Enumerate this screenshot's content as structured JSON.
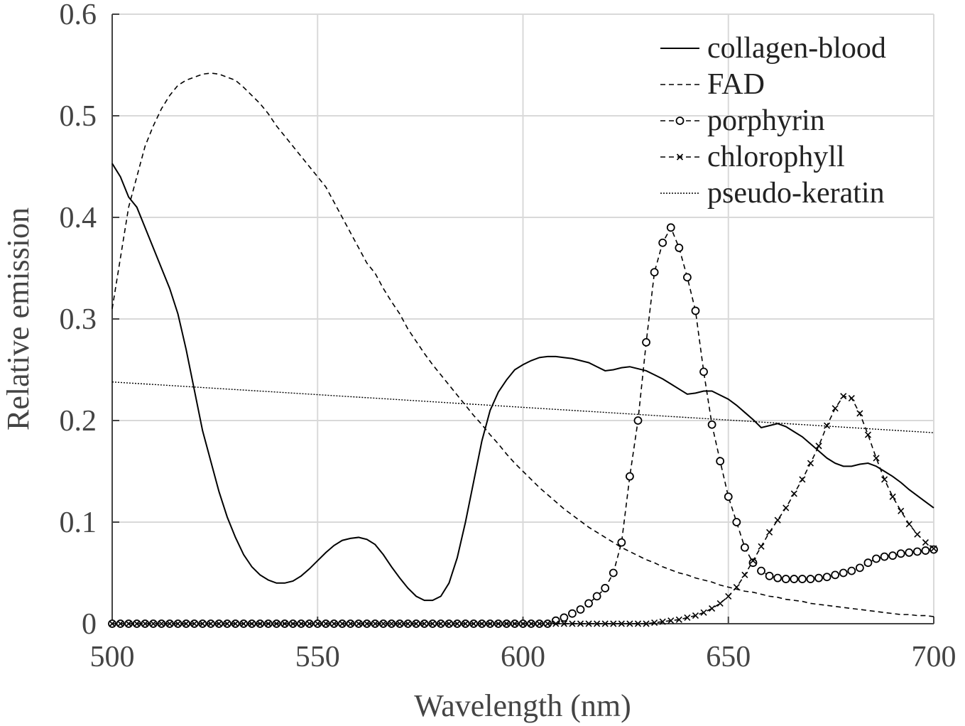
{
  "chart_data": {
    "type": "line",
    "xlabel": "Wavelength (nm)",
    "ylabel": "Relative emission",
    "xlim": [
      500,
      700
    ],
    "ylim": [
      0,
      0.6
    ],
    "xticks": [
      500,
      550,
      600,
      650,
      700
    ],
    "yticks": [
      0,
      0.1,
      0.2,
      0.3,
      0.4,
      0.5,
      0.6
    ],
    "grid": true,
    "legend": "upper right",
    "x": [
      500,
      502,
      504,
      506,
      508,
      510,
      512,
      514,
      516,
      518,
      520,
      522,
      524,
      526,
      528,
      530,
      532,
      534,
      536,
      538,
      540,
      542,
      544,
      546,
      548,
      550,
      552,
      554,
      556,
      558,
      560,
      562,
      564,
      566,
      568,
      570,
      572,
      574,
      576,
      578,
      580,
      582,
      584,
      586,
      588,
      590,
      592,
      594,
      596,
      598,
      600,
      602,
      604,
      606,
      608,
      610,
      612,
      614,
      616,
      618,
      620,
      622,
      624,
      626,
      628,
      630,
      632,
      634,
      636,
      638,
      640,
      642,
      644,
      646,
      648,
      650,
      652,
      654,
      656,
      658,
      660,
      662,
      664,
      666,
      668,
      670,
      672,
      674,
      676,
      678,
      680,
      682,
      684,
      686,
      688,
      690,
      692,
      694,
      696,
      698,
      700
    ],
    "series": [
      {
        "name": "collagen-blood",
        "color": "#000",
        "dash": "solid",
        "marker": "none",
        "values": [
          0.453,
          0.44,
          0.42,
          0.41,
          0.39,
          0.37,
          0.35,
          0.33,
          0.305,
          0.27,
          0.23,
          0.19,
          0.16,
          0.13,
          0.105,
          0.085,
          0.068,
          0.056,
          0.048,
          0.043,
          0.04,
          0.04,
          0.042,
          0.047,
          0.054,
          0.062,
          0.07,
          0.077,
          0.082,
          0.084,
          0.085,
          0.083,
          0.078,
          0.068,
          0.056,
          0.045,
          0.035,
          0.027,
          0.023,
          0.023,
          0.027,
          0.04,
          0.065,
          0.1,
          0.14,
          0.18,
          0.21,
          0.228,
          0.24,
          0.25,
          0.255,
          0.259,
          0.262,
          0.263,
          0.263,
          0.262,
          0.261,
          0.259,
          0.257,
          0.253,
          0.249,
          0.25,
          0.252,
          0.253,
          0.251,
          0.249,
          0.245,
          0.241,
          0.236,
          0.231,
          0.226,
          0.227,
          0.229,
          0.229,
          0.225,
          0.221,
          0.215,
          0.208,
          0.201,
          0.193,
          0.195,
          0.197,
          0.194,
          0.189,
          0.184,
          0.177,
          0.17,
          0.163,
          0.158,
          0.155,
          0.155,
          0.157,
          0.158,
          0.155,
          0.15,
          0.145,
          0.139,
          0.132,
          0.126,
          0.12,
          0.114
        ]
      },
      {
        "name": "FAD",
        "color": "#000",
        "dash": "dashed",
        "marker": "none",
        "values": [
          0.31,
          0.36,
          0.41,
          0.44,
          0.47,
          0.49,
          0.507,
          0.52,
          0.53,
          0.535,
          0.538,
          0.541,
          0.542,
          0.541,
          0.538,
          0.535,
          0.528,
          0.52,
          0.512,
          0.502,
          0.49,
          0.48,
          0.47,
          0.46,
          0.45,
          0.44,
          0.43,
          0.415,
          0.4,
          0.385,
          0.37,
          0.355,
          0.345,
          0.33,
          0.317,
          0.305,
          0.29,
          0.278,
          0.266,
          0.255,
          0.245,
          0.235,
          0.225,
          0.215,
          0.205,
          0.196,
          0.186,
          0.177,
          0.167,
          0.158,
          0.15,
          0.142,
          0.134,
          0.127,
          0.12,
          0.113,
          0.107,
          0.101,
          0.095,
          0.09,
          0.085,
          0.08,
          0.075,
          0.071,
          0.067,
          0.063,
          0.06,
          0.056,
          0.053,
          0.05,
          0.048,
          0.045,
          0.043,
          0.041,
          0.038,
          0.036,
          0.034,
          0.032,
          0.031,
          0.029,
          0.027,
          0.026,
          0.024,
          0.023,
          0.022,
          0.02,
          0.019,
          0.018,
          0.017,
          0.016,
          0.015,
          0.014,
          0.013,
          0.012,
          0.011,
          0.01,
          0.009,
          0.009,
          0.008,
          0.008,
          0.007
        ]
      },
      {
        "name": "porphyrin",
        "color": "#000",
        "dash": "dashed",
        "marker": "o",
        "values": [
          0,
          0,
          0,
          0,
          0,
          0,
          0,
          0,
          0,
          0,
          0,
          0,
          0,
          0,
          0,
          0,
          0,
          0,
          0,
          0,
          0,
          0,
          0,
          0,
          0,
          0,
          0,
          0,
          0,
          0,
          0,
          0,
          0,
          0,
          0,
          0,
          0,
          0,
          0,
          0,
          0,
          0,
          0,
          0,
          0,
          0,
          0,
          0,
          0,
          0,
          0,
          0,
          0,
          0,
          0.003,
          0.006,
          0.01,
          0.014,
          0.02,
          0.027,
          0.035,
          0.05,
          0.08,
          0.145,
          0.2,
          0.277,
          0.346,
          0.375,
          0.39,
          0.37,
          0.341,
          0.308,
          0.248,
          0.196,
          0.16,
          0.125,
          0.1,
          0.075,
          0.06,
          0.052,
          0.047,
          0.045,
          0.044,
          0.044,
          0.044,
          0.044,
          0.045,
          0.046,
          0.048,
          0.05,
          0.052,
          0.055,
          0.06,
          0.064,
          0.066,
          0.067,
          0.069,
          0.07,
          0.071,
          0.072,
          0.073
        ]
      },
      {
        "name": "chlorophyll",
        "color": "#000",
        "dash": "dashed",
        "marker": "x",
        "values": [
          0,
          0,
          0,
          0,
          0,
          0,
          0,
          0,
          0,
          0,
          0,
          0,
          0,
          0,
          0,
          0,
          0,
          0,
          0,
          0,
          0,
          0,
          0,
          0,
          0,
          0,
          0,
          0,
          0,
          0,
          0,
          0,
          0,
          0,
          0,
          0,
          0,
          0,
          0,
          0,
          0,
          0,
          0,
          0,
          0,
          0,
          0,
          0,
          0,
          0,
          0,
          0,
          0,
          0,
          0,
          0,
          0,
          0,
          0,
          0,
          0,
          0,
          0,
          0,
          0,
          0,
          0.001,
          0.002,
          0.003,
          0.004,
          0.006,
          0.008,
          0.011,
          0.015,
          0.02,
          0.027,
          0.036,
          0.048,
          0.062,
          0.076,
          0.09,
          0.102,
          0.114,
          0.128,
          0.142,
          0.158,
          0.175,
          0.195,
          0.212,
          0.224,
          0.222,
          0.207,
          0.186,
          0.163,
          0.142,
          0.125,
          0.111,
          0.098,
          0.088,
          0.08,
          0.074
        ]
      },
      {
        "name": "pseudo-keratin",
        "color": "#000",
        "dash": "dotted",
        "marker": "none",
        "values": [
          0.238,
          0.2375,
          0.237,
          0.2365,
          0.236,
          0.2355,
          0.235,
          0.2345,
          0.234,
          0.2335,
          0.233,
          0.2325,
          0.232,
          0.2315,
          0.231,
          0.2305,
          0.23,
          0.2295,
          0.229,
          0.2285,
          0.228,
          0.2275,
          0.227,
          0.2265,
          0.226,
          0.2255,
          0.225,
          0.2245,
          0.224,
          0.2235,
          0.223,
          0.2225,
          0.222,
          0.2215,
          0.221,
          0.2205,
          0.22,
          0.2195,
          0.219,
          0.2185,
          0.218,
          0.2175,
          0.217,
          0.2165,
          0.216,
          0.2155,
          0.215,
          0.2145,
          0.214,
          0.2135,
          0.213,
          0.2125,
          0.212,
          0.2115,
          0.211,
          0.2105,
          0.21,
          0.2095,
          0.209,
          0.2085,
          0.208,
          0.2075,
          0.207,
          0.2065,
          0.206,
          0.2055,
          0.205,
          0.2045,
          0.204,
          0.2035,
          0.203,
          0.2025,
          0.202,
          0.2015,
          0.201,
          0.2005,
          0.2,
          0.1995,
          0.199,
          0.1985,
          0.198,
          0.1975,
          0.197,
          0.1965,
          0.196,
          0.1955,
          0.195,
          0.1945,
          0.194,
          0.1935,
          0.193,
          0.1925,
          0.192,
          0.1915,
          0.191,
          0.1905,
          0.19,
          0.1895,
          0.189,
          0.1885,
          0.188
        ]
      }
    ]
  }
}
